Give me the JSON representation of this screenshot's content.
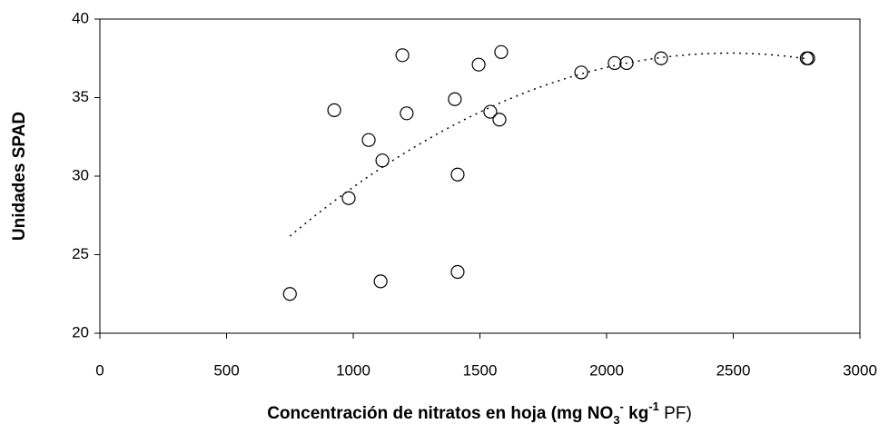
{
  "chart_data": {
    "type": "scatter",
    "ylabel": "Unidades SPAD",
    "xlabel": [
      "Concentración de nitratos en hoja (mg NO",
      "3",
      "-",
      " kg",
      "-1",
      " PF)"
    ],
    "xlabel_style": [
      "bold",
      "bold-sub",
      "bold-super",
      "bold",
      "bold-super",
      "plain"
    ],
    "x": [
      750,
      925,
      982,
      1061,
      1108,
      1115,
      1194,
      1211,
      1401,
      1412,
      1412,
      1495,
      1541,
      1577,
      1584,
      1900,
      2032,
      2079,
      2215,
      2790,
      2796
    ],
    "values": [
      22.5,
      34.2,
      28.6,
      32.3,
      23.3,
      31.0,
      37.7,
      34.0,
      34.9,
      30.1,
      23.9,
      37.1,
      34.1,
      33.6,
      37.9,
      36.6,
      37.2,
      37.2,
      37.5,
      37.5,
      37.5
    ],
    "color": "#000000",
    "trendline": "polynomial",
    "xlim": [
      0,
      3000
    ],
    "xticks": [
      0,
      500,
      1000,
      1500,
      2000,
      2500,
      3000
    ],
    "ylim": [
      20,
      40
    ],
    "yticks": [
      20,
      25,
      30,
      35,
      40
    ]
  }
}
